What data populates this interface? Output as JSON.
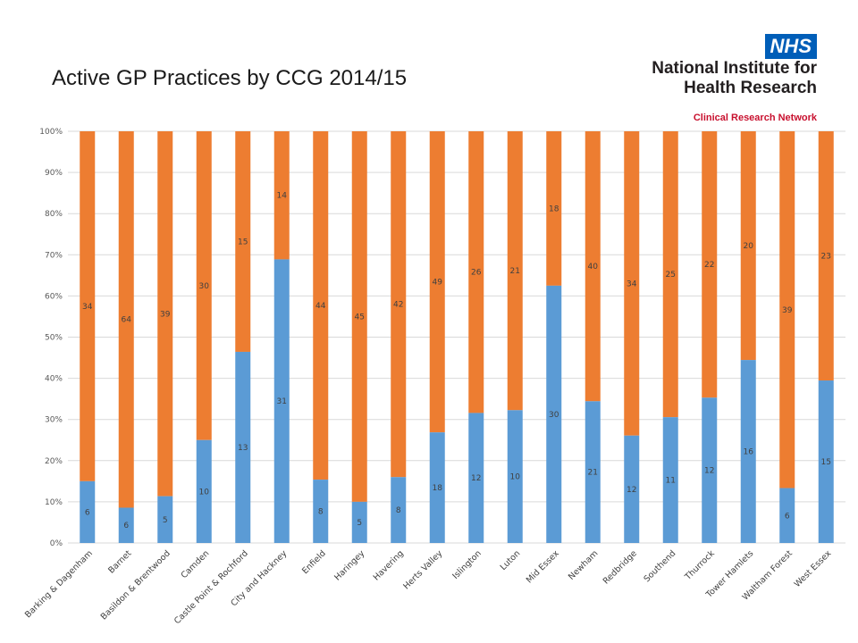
{
  "slide": {
    "title": "Active GP Practices by CCG 2014/15"
  },
  "logo": {
    "badge": "NHS",
    "line1": "National Institute for",
    "line2": "Health Research",
    "network": "Clinical Research Network"
  },
  "colors": {
    "series_a": "#5B9BD5",
    "series_b": "#ED7D31",
    "grid": "#D9D9D9",
    "nhs_blue": "#005EB8",
    "network_red": "#C8102E"
  },
  "chart_data": {
    "type": "bar",
    "stacked": "percent",
    "title": "",
    "xlabel": "",
    "ylabel": "",
    "ylim": [
      0,
      100
    ],
    "y_ticks": [
      "0%",
      "10%",
      "20%",
      "30%",
      "40%",
      "50%",
      "60%",
      "70%",
      "80%",
      "90%",
      "100%"
    ],
    "grid": true,
    "legend": "none",
    "categories": [
      "Barking & Dagenham",
      "Barnet",
      "Basildon & Brentwood",
      "Camden",
      "Castle Point & Rochford",
      "City and Hackney",
      "Enfield",
      "Haringey",
      "Havering",
      "Herts Valley",
      "Islington",
      "Luton",
      "Mid Essex",
      "Newham",
      "Redbridge",
      "Southend",
      "Thurrock",
      "Tower Hamlets",
      "Waltham Forest",
      "West Essex"
    ],
    "series": [
      {
        "values": [
          6,
          6,
          5,
          10,
          13,
          31,
          8,
          5,
          8,
          18,
          12,
          10,
          30,
          21,
          12,
          11,
          12,
          16,
          6,
          15
        ]
      },
      {
        "values": [
          34,
          64,
          39,
          30,
          15,
          14,
          44,
          45,
          42,
          49,
          26,
          21,
          18,
          40,
          34,
          25,
          22,
          20,
          39,
          23
        ]
      }
    ]
  }
}
